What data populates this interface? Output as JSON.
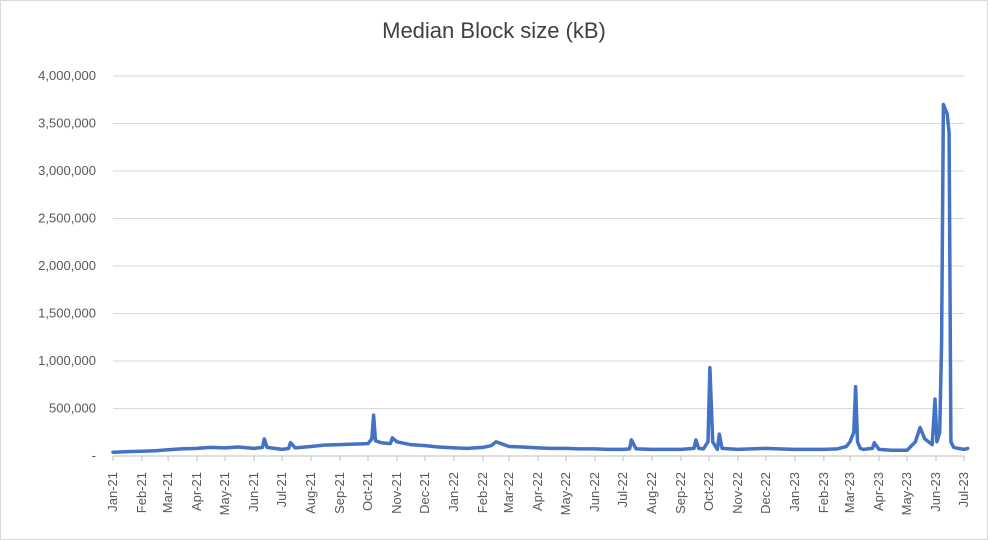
{
  "chart_data": {
    "type": "line",
    "title": "Median Block size (kB)",
    "xlabel": "",
    "ylabel": "",
    "ylim": [
      0,
      4000000
    ],
    "y_ticks": [
      "-",
      "500,000",
      "1,000,000",
      "1,500,000",
      "2,000,000",
      "2,500,000",
      "3,000,000",
      "3,500,000",
      "4,000,000"
    ],
    "y_tick_values": [
      0,
      500000,
      1000000,
      1500000,
      2000000,
      2500000,
      3000000,
      3500000,
      4000000
    ],
    "x_ticks": [
      "Jan-21",
      "Feb-21",
      "Mar-21",
      "Apr-21",
      "May-21",
      "Jun-21",
      "Jul-21",
      "Aug-21",
      "Sep-21",
      "Oct-21",
      "Nov-21",
      "Dec-21",
      "Jan-22",
      "Feb-22",
      "Mar-22",
      "Apr-22",
      "May-22",
      "Jun-22",
      "Jul-22",
      "Aug-22",
      "Sep-22",
      "Oct-22",
      "Nov-22",
      "Dec-22",
      "Jan-23",
      "Feb-23",
      "Mar-23",
      "Apr-23",
      "May-23",
      "Jun-23",
      "Jul-23"
    ],
    "grid": true,
    "legend": "none",
    "color": "#4472c4",
    "series": [
      {
        "x": [
          "2021-01-01",
          "2021-01-15",
          "2021-02-01",
          "2021-02-15",
          "2021-03-01",
          "2021-03-15",
          "2021-04-01",
          "2021-04-15",
          "2021-05-01",
          "2021-05-15",
          "2021-06-01",
          "2021-06-10",
          "2021-06-12",
          "2021-06-15",
          "2021-07-01",
          "2021-07-08",
          "2021-07-10",
          "2021-07-15",
          "2021-08-01",
          "2021-08-15",
          "2021-09-01",
          "2021-09-15",
          "2021-10-01",
          "2021-10-05",
          "2021-10-07",
          "2021-10-09",
          "2021-10-15",
          "2021-10-25",
          "2021-10-27",
          "2021-11-01",
          "2021-11-15",
          "2021-12-01",
          "2021-12-15",
          "2022-01-01",
          "2022-01-15",
          "2022-02-01",
          "2022-02-10",
          "2022-02-15",
          "2022-03-01",
          "2022-03-15",
          "2022-04-01",
          "2022-04-15",
          "2022-05-01",
          "2022-05-15",
          "2022-06-01",
          "2022-06-15",
          "2022-07-01",
          "2022-07-08",
          "2022-07-10",
          "2022-07-15",
          "2022-08-01",
          "2022-08-15",
          "2022-09-01",
          "2022-09-15",
          "2022-09-17",
          "2022-09-20",
          "2022-09-25",
          "2022-09-28",
          "2022-09-30",
          "2022-10-02",
          "2022-10-05",
          "2022-10-10",
          "2022-10-12",
          "2022-10-15",
          "2022-11-01",
          "2022-11-15",
          "2022-12-01",
          "2022-12-15",
          "2023-01-01",
          "2023-01-15",
          "2023-02-01",
          "2023-02-15",
          "2023-02-25",
          "2023-03-01",
          "2023-03-05",
          "2023-03-07",
          "2023-03-09",
          "2023-03-12",
          "2023-03-15",
          "2023-03-25",
          "2023-03-27",
          "2023-04-01",
          "2023-04-15",
          "2023-05-01",
          "2023-05-10",
          "2023-05-15",
          "2023-05-20",
          "2023-05-28",
          "2023-05-31",
          "2023-06-02",
          "2023-06-05",
          "2023-06-07",
          "2023-06-09",
          "2023-06-11",
          "2023-06-13",
          "2023-06-15",
          "2023-06-17",
          "2023-06-20",
          "2023-06-25",
          "2023-07-01",
          "2023-07-05"
        ],
        "y": [
          40000,
          45000,
          50000,
          55000,
          65000,
          75000,
          80000,
          90000,
          85000,
          95000,
          80000,
          90000,
          180000,
          90000,
          70000,
          80000,
          140000,
          85000,
          100000,
          115000,
          120000,
          125000,
          130000,
          180000,
          430000,
          160000,
          140000,
          130000,
          190000,
          150000,
          120000,
          110000,
          95000,
          85000,
          80000,
          90000,
          110000,
          150000,
          100000,
          95000,
          85000,
          80000,
          80000,
          75000,
          75000,
          70000,
          70000,
          75000,
          170000,
          75000,
          70000,
          70000,
          70000,
          80000,
          170000,
          80000,
          75000,
          120000,
          150000,
          930000,
          150000,
          70000,
          230000,
          80000,
          70000,
          75000,
          80000,
          75000,
          70000,
          70000,
          70000,
          75000,
          100000,
          150000,
          250000,
          730000,
          150000,
          80000,
          70000,
          80000,
          140000,
          70000,
          60000,
          60000,
          150000,
          300000,
          180000,
          120000,
          600000,
          150000,
          250000,
          1200000,
          3700000,
          3650000,
          3600000,
          3400000,
          150000,
          90000,
          80000,
          70000,
          80000
        ]
      }
    ]
  }
}
